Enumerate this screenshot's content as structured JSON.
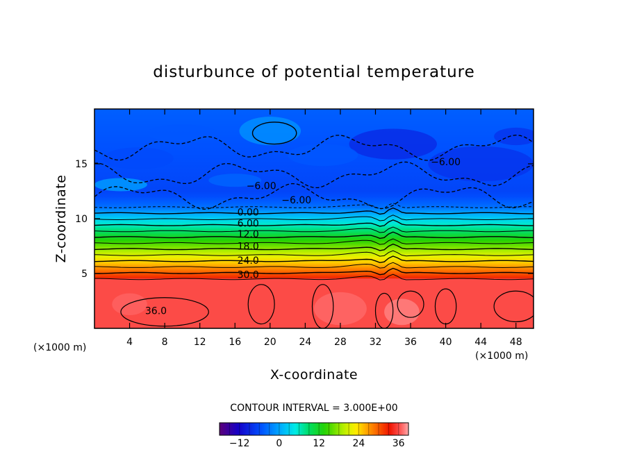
{
  "chart_data": {
    "type": "contour",
    "title": "disturbunce of potential temperature",
    "xlabel": "X-coordinate",
    "ylabel": "Z-coordinate",
    "x_unit_left": "(×1000 m)",
    "x_unit_right": "(×1000 m)",
    "xlim": [
      0,
      50
    ],
    "ylim": [
      0,
      20
    ],
    "xticks": [
      4,
      8,
      12,
      16,
      20,
      24,
      28,
      32,
      36,
      40,
      44,
      48
    ],
    "yticks": [
      5,
      10,
      15
    ],
    "contour_interval_text": "CONTOUR INTERVAL = 3.000E+00",
    "contour_labels": [
      {
        "text": "-6.00",
        "x": 19,
        "z": 13.0
      },
      {
        "text": "-6.00",
        "x": 23,
        "z": 11.7
      },
      {
        "text": "-6.00",
        "x": 40,
        "z": 15.2
      },
      {
        "text": "0.00",
        "x": 17.5,
        "z": 10.6
      },
      {
        "text": "6.00",
        "x": 17.5,
        "z": 9.6
      },
      {
        "text": "12.0",
        "x": 17.5,
        "z": 8.6
      },
      {
        "text": "18.0",
        "x": 17.5,
        "z": 7.5
      },
      {
        "text": "24.0",
        "x": 17.5,
        "z": 6.2
      },
      {
        "text": "30.0",
        "x": 17.5,
        "z": 4.9
      },
      {
        "text": "36.0",
        "x": 7,
        "z": 1.6
      }
    ],
    "colorbar": {
      "min": -18,
      "max": 39,
      "ticks": [
        -12,
        0,
        12,
        24,
        36
      ]
    },
    "structure": {
      "stratosphere_value_range": [
        -9,
        -3
      ],
      "inversion_height": 10.5,
      "gradient_layer": [
        4.5,
        10.5
      ],
      "boundary_layer_value": 36,
      "boundary_layer_top": 4.5,
      "perturbation_x": 33.5
    }
  }
}
